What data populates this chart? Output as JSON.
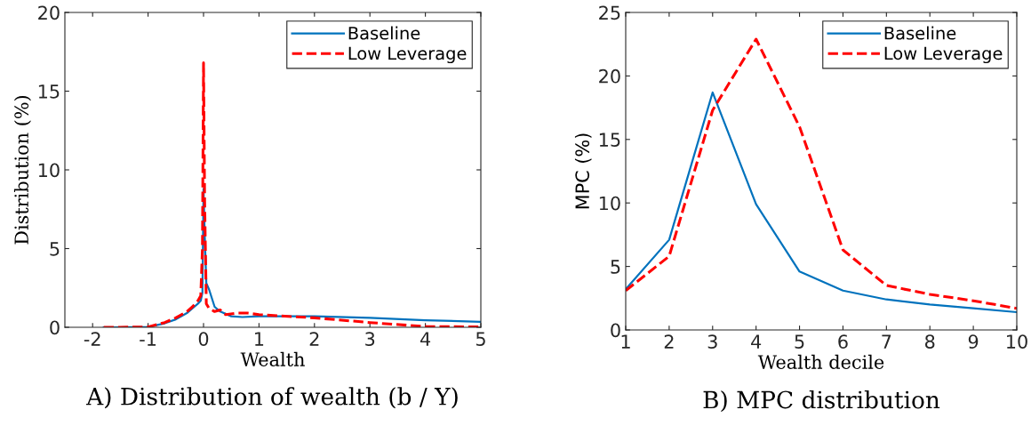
{
  "chart_data": [
    {
      "type": "line",
      "title": "A) Distribution of wealth (b / Y)",
      "xlabel": "Wealth",
      "ylabel": "Distribution (%)",
      "xlim": [
        -2.5,
        5
      ],
      "xticks": [
        -2,
        -1,
        0,
        1,
        2,
        3,
        4,
        5
      ],
      "ylim": [
        0,
        20
      ],
      "yticks": [
        0,
        5,
        10,
        15,
        20
      ],
      "grid": false,
      "legend": "top right",
      "series": [
        {
          "name": "Baseline",
          "color": "#0072bd",
          "line_style": "solid",
          "x": [
            -1.8,
            -1.5,
            -1,
            -0.7,
            -0.5,
            -0.3,
            -0.2,
            -0.1,
            -0.05,
            -0.02,
            0,
            0.02,
            0.05,
            0.1,
            0.2,
            0.3,
            0.5,
            0.7,
            1,
            2,
            3,
            4,
            5
          ],
          "values": [
            0,
            0,
            0.02,
            0.25,
            0.5,
            0.9,
            1.2,
            1.5,
            1.7,
            2.2,
            8.8,
            6,
            2.8,
            2.4,
            1.3,
            1.0,
            0.7,
            0.65,
            0.7,
            0.7,
            0.6,
            0.45,
            0.35
          ]
        },
        {
          "name": "Low Leverage",
          "color": "#ff0000",
          "line_style": "dashed",
          "x": [
            -1.8,
            -1.5,
            -1,
            -0.7,
            -0.5,
            -0.3,
            -0.2,
            -0.1,
            -0.05,
            -0.02,
            0,
            0.02,
            0.05,
            0.1,
            0.2,
            0.3,
            0.4,
            0.6,
            0.8,
            1,
            2,
            3,
            4,
            5
          ],
          "values": [
            0,
            0,
            0.02,
            0.3,
            0.6,
            1.0,
            1.3,
            1.7,
            2.0,
            5,
            16.8,
            8,
            1.5,
            1.2,
            1.0,
            1.1,
            0.8,
            0.9,
            0.9,
            0.8,
            0.6,
            0.3,
            0.05,
            0.02
          ]
        }
      ]
    },
    {
      "type": "line",
      "title": "B) MPC distribution",
      "xlabel": "Wealth decile",
      "ylabel": "MPC (%)",
      "xlim": [
        1,
        10
      ],
      "xticks": [
        1,
        2,
        3,
        4,
        5,
        6,
        7,
        8,
        9,
        10
      ],
      "ylim": [
        0,
        25
      ],
      "yticks": [
        0,
        5,
        10,
        15,
        20,
        25
      ],
      "grid": false,
      "legend": "top right",
      "series": [
        {
          "name": "Baseline",
          "color": "#0072bd",
          "line_style": "solid",
          "x": [
            1,
            2,
            3,
            4,
            5,
            6,
            7,
            8,
            9,
            10
          ],
          "values": [
            3.2,
            7.1,
            18.7,
            9.9,
            4.6,
            3.1,
            2.4,
            2.0,
            1.7,
            1.4
          ]
        },
        {
          "name": "Low Leverage",
          "color": "#ff0000",
          "line_style": "dashed",
          "x": [
            1,
            2,
            3,
            4,
            5,
            6,
            7,
            8,
            9,
            10
          ],
          "values": [
            3.1,
            5.8,
            17.3,
            22.9,
            16.0,
            6.3,
            3.5,
            2.8,
            2.3,
            1.7
          ]
        }
      ]
    }
  ]
}
